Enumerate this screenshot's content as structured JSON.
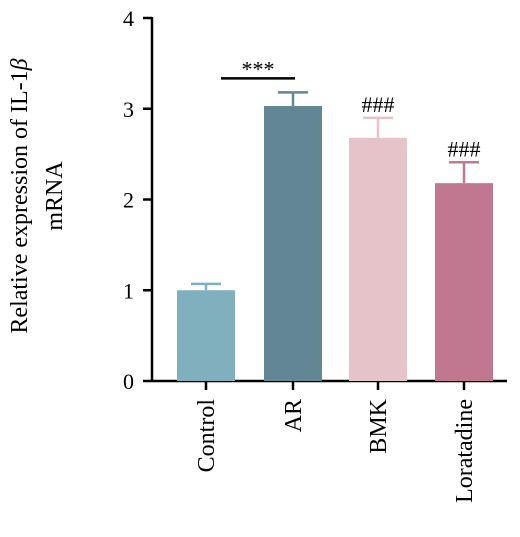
{
  "chart_data": {
    "type": "bar",
    "categories": [
      "Control",
      "AR",
      "BMK",
      "Loratadine"
    ],
    "values": [
      1.0,
      3.03,
      2.68,
      2.18
    ],
    "errors": [
      0.07,
      0.15,
      0.22,
      0.23
    ],
    "colors": [
      "#80b0be",
      "#638695",
      "#e5c3c9",
      "#c07890"
    ],
    "error_colors": [
      "#80b0be",
      "#638695",
      "#e5c3c9",
      "#c07890"
    ],
    "ylim": [
      0,
      4
    ],
    "yticks": [
      0,
      1,
      2,
      3,
      4
    ],
    "ylabel_line1": "Relative expression of IL-1",
    "ylabel_greek": "β",
    "ylabel_line2": "mRNA",
    "xlabel": "",
    "annotations": [
      {
        "category": "AR",
        "text": "***",
        "bracket_from": "Control",
        "bracket_to": "AR"
      },
      {
        "category": "BMK",
        "text": "###"
      },
      {
        "category": "Loratadine",
        "text": "###"
      }
    ],
    "grid": false
  }
}
